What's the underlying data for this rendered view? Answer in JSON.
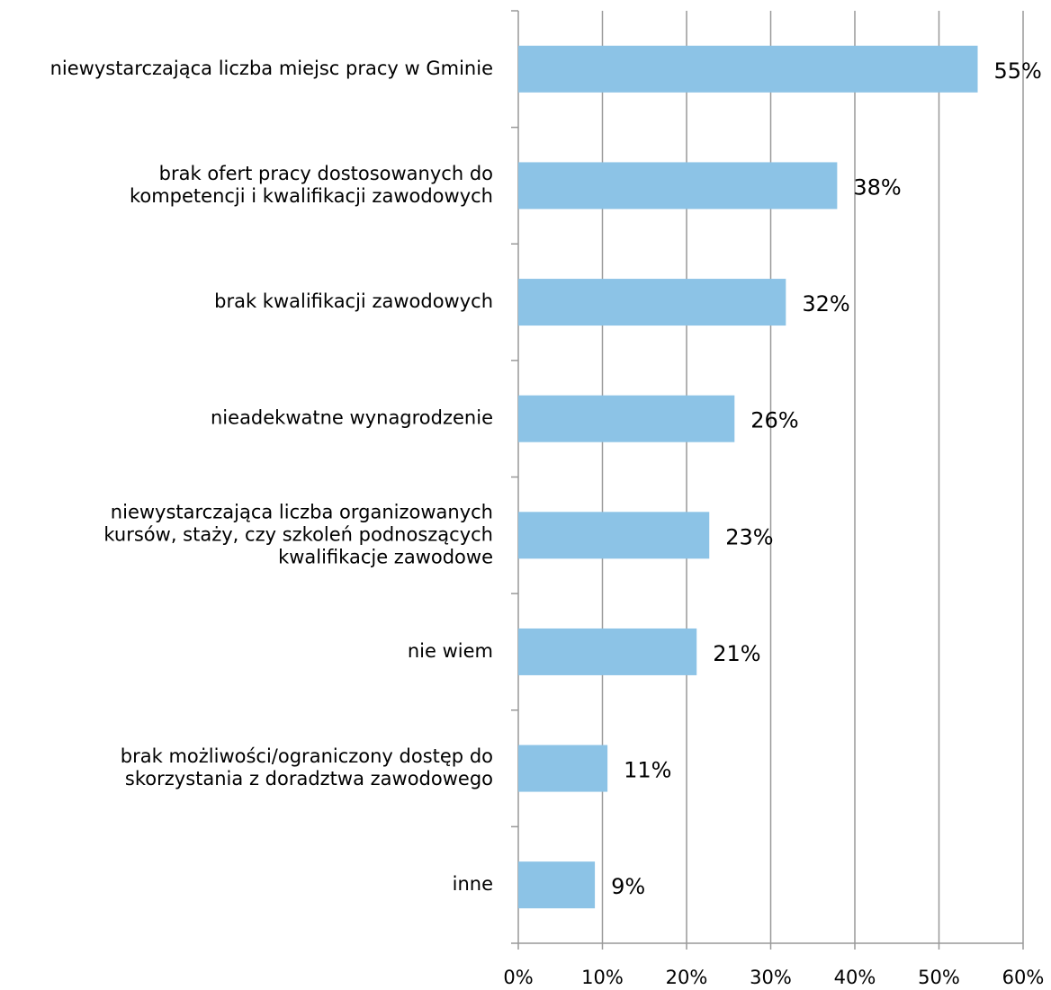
{
  "chart_data": {
    "type": "hbar",
    "categories": [
      "niewystarczająca liczba miejsc pracy w Gminie",
      "brak ofert pracy dostosowanych do\nkompetencji i kwalifikacji zawodowych",
      "brak kwalifikacji zawodowych",
      "nieadekwatne wynagrodzenie",
      "niewystarczająca liczba organizowanych\nkursów, staży, czy szkoleń podnoszących\nkwalifikacje zawodowe",
      "nie wiem",
      "brak możliwości/ograniczony dostęp do\nskorzystania z doradztwa zawodowego",
      "inne"
    ],
    "values": [
      54.6,
      37.9,
      31.8,
      25.7,
      22.7,
      21.2,
      10.6,
      9.1
    ],
    "value_labels": [
      "55%",
      "38%",
      "32%",
      "26%",
      "23%",
      "21%",
      "11%",
      "9%"
    ],
    "color": "#8cc3e6",
    "xlim": [
      0,
      60
    ],
    "xticks": [
      {
        "value": 0,
        "label": "0%"
      },
      {
        "value": 10,
        "label": "10%"
      },
      {
        "value": 20,
        "label": "20%"
      },
      {
        "value": 30,
        "label": "30%"
      },
      {
        "value": 40,
        "label": "40%"
      },
      {
        "value": 50,
        "label": "50%"
      },
      {
        "value": 60,
        "label": "60%"
      }
    ],
    "grid": true
  }
}
